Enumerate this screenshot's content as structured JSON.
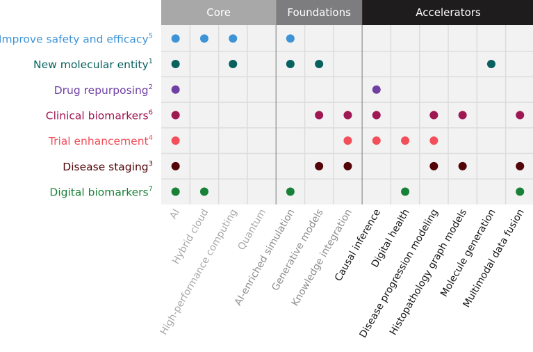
{
  "chart_data": {
    "type": "heatmap",
    "title": "",
    "groups": [
      {
        "name": "Core",
        "start": 0,
        "count": 4,
        "header_color": "#a8a8a8",
        "label_color": "#a8a8a8"
      },
      {
        "name": "Foundations",
        "start": 4,
        "count": 3,
        "header_color": "#7d7d7f",
        "label_color": "#8d8d8d"
      },
      {
        "name": "Accelerators",
        "start": 7,
        "count": 6,
        "header_color": "#1e1c1d",
        "label_color": "#161616"
      }
    ],
    "columns": [
      "AI",
      "Hybrid cloud",
      "High-performance computing",
      "Quantum",
      "AI-enriched simulation",
      "Generative models",
      "Knowledge integration",
      "Causal inference",
      "Digital health",
      "Disease progression modeling",
      "Histopathology graph models",
      "Molecule generation",
      "Multimodal data fusion"
    ],
    "rows": [
      {
        "label": "Improve safety and efficacy",
        "ref": "5",
        "color": "#3d93d6",
        "marks": [
          1,
          1,
          1,
          0,
          1,
          0,
          0,
          0,
          0,
          0,
          0,
          0,
          0
        ]
      },
      {
        "label": "New molecular entity",
        "ref": "1",
        "color": "#08605f",
        "marks": [
          1,
          0,
          1,
          0,
          1,
          1,
          0,
          0,
          0,
          0,
          0,
          1,
          0
        ]
      },
      {
        "label": "Drug repurposing",
        "ref": "2",
        "color": "#6f3fa3",
        "marks": [
          1,
          0,
          0,
          0,
          0,
          0,
          0,
          1,
          0,
          0,
          0,
          0,
          0
        ]
      },
      {
        "label": "Clinical biomarkers",
        "ref": "6",
        "color": "#9f1853",
        "marks": [
          1,
          0,
          0,
          0,
          0,
          1,
          1,
          1,
          0,
          1,
          1,
          0,
          1
        ]
      },
      {
        "label": "Trial enhancement",
        "ref": "4",
        "color": "#f24f5a",
        "marks": [
          1,
          0,
          0,
          0,
          0,
          0,
          1,
          1,
          1,
          1,
          0,
          0,
          0
        ]
      },
      {
        "label": "Disease staging",
        "ref": "3",
        "color": "#520408",
        "marks": [
          1,
          0,
          0,
          0,
          0,
          1,
          1,
          0,
          0,
          1,
          1,
          0,
          1
        ]
      },
      {
        "label": "Digital biomarkers",
        "ref": "7",
        "color": "#198038",
        "marks": [
          1,
          1,
          0,
          0,
          1,
          0,
          0,
          0,
          1,
          0,
          0,
          0,
          1
        ]
      }
    ],
    "colors": {
      "cell_bg": "#f2f2f2",
      "grid": "#dcdcdc",
      "group_divider": "#8d8d8d"
    },
    "legend": "none",
    "grid": true
  }
}
